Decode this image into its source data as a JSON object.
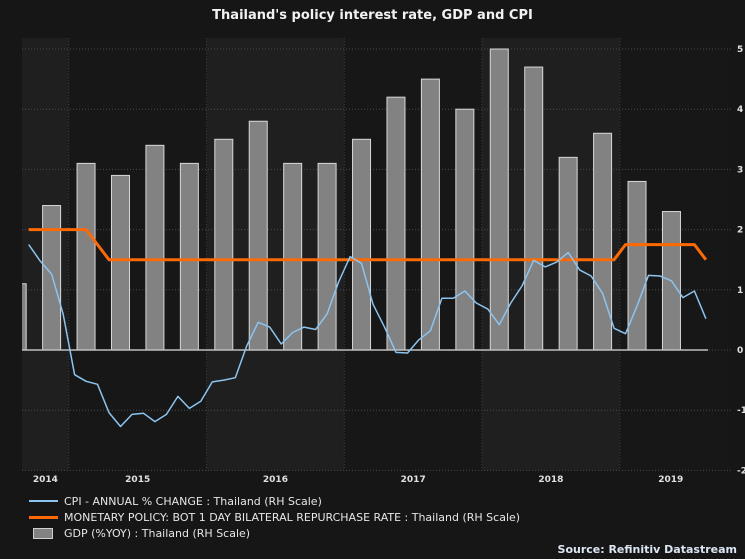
{
  "chart_data": {
    "type": "bar+line",
    "title": "Thailand's policy interest rate, GDP and CPI",
    "xlim": [
      2014.66,
      2019.8
    ],
    "ylim": [
      -2,
      5.2
    ],
    "yticks": [
      5,
      4,
      3,
      2,
      1,
      0,
      -1,
      -2
    ],
    "y_axis_side": "right",
    "xtick_labels": [
      "2014",
      "2015",
      "2016",
      "2017",
      "2018",
      "2019"
    ],
    "grid": true,
    "legend_position": "bottom-left",
    "colors": {
      "background": "#161616",
      "band_light": "#1f1f1f",
      "band_dark": "#171717",
      "cpi": "#8cc4f0",
      "policy": "#ff6a00",
      "gdp_fill": "#828282",
      "gdp_edge": "#d8d8d8"
    },
    "series": [
      {
        "name": "CPI - ANNUAL % CHANGE : Thailand (RH Scale)",
        "type": "line",
        "frequency": "monthly",
        "start": "2014-09",
        "values": [
          1.75,
          1.48,
          1.26,
          0.6,
          -0.41,
          -0.52,
          -0.57,
          -1.04,
          -1.27,
          -1.07,
          -1.05,
          -1.19,
          -1.07,
          -0.77,
          -0.97,
          -0.85,
          -0.53,
          -0.5,
          -0.46,
          0.07,
          0.46,
          0.38,
          0.1,
          0.29,
          0.38,
          0.34,
          0.6,
          1.13,
          1.55,
          1.44,
          0.76,
          0.38,
          -0.04,
          -0.05,
          0.17,
          0.32,
          0.86,
          0.86,
          0.98,
          0.78,
          0.68,
          0.42,
          0.78,
          1.07,
          1.49,
          1.38,
          1.46,
          1.62,
          1.33,
          1.23,
          0.94,
          0.36,
          0.27,
          0.73,
          1.24,
          1.23,
          1.15,
          0.87,
          0.98,
          0.52
        ]
      },
      {
        "name": "MONETARY POLICY: BOT 1 DAY BILATERAL REPURCHASE RATE : Thailand (RH Scale)",
        "type": "line",
        "frequency": "monthly",
        "start": "2014-09",
        "values": [
          2.0,
          2.0,
          2.0,
          2.0,
          2.0,
          2.0,
          1.75,
          1.5,
          1.5,
          1.5,
          1.5,
          1.5,
          1.5,
          1.5,
          1.5,
          1.5,
          1.5,
          1.5,
          1.5,
          1.5,
          1.5,
          1.5,
          1.5,
          1.5,
          1.5,
          1.5,
          1.5,
          1.5,
          1.5,
          1.5,
          1.5,
          1.5,
          1.5,
          1.5,
          1.5,
          1.5,
          1.5,
          1.5,
          1.5,
          1.5,
          1.5,
          1.5,
          1.5,
          1.5,
          1.5,
          1.5,
          1.5,
          1.5,
          1.5,
          1.5,
          1.5,
          1.5,
          1.75,
          1.75,
          1.75,
          1.75,
          1.75,
          1.75,
          1.75,
          1.5
        ]
      },
      {
        "name": "GDP (%YOY) : Thailand (RH Scale)",
        "type": "bar",
        "frequency": "quarterly",
        "start": "2014-Q3",
        "values": [
          1.1,
          2.4,
          3.1,
          2.9,
          3.4,
          3.1,
          3.5,
          3.8,
          3.1,
          3.1,
          3.5,
          4.2,
          4.5,
          4.0,
          5.0,
          4.7,
          3.2,
          3.6,
          2.8,
          2.3
        ]
      }
    ]
  },
  "footer": {
    "source": "Source: Refinitiv Datastream"
  }
}
